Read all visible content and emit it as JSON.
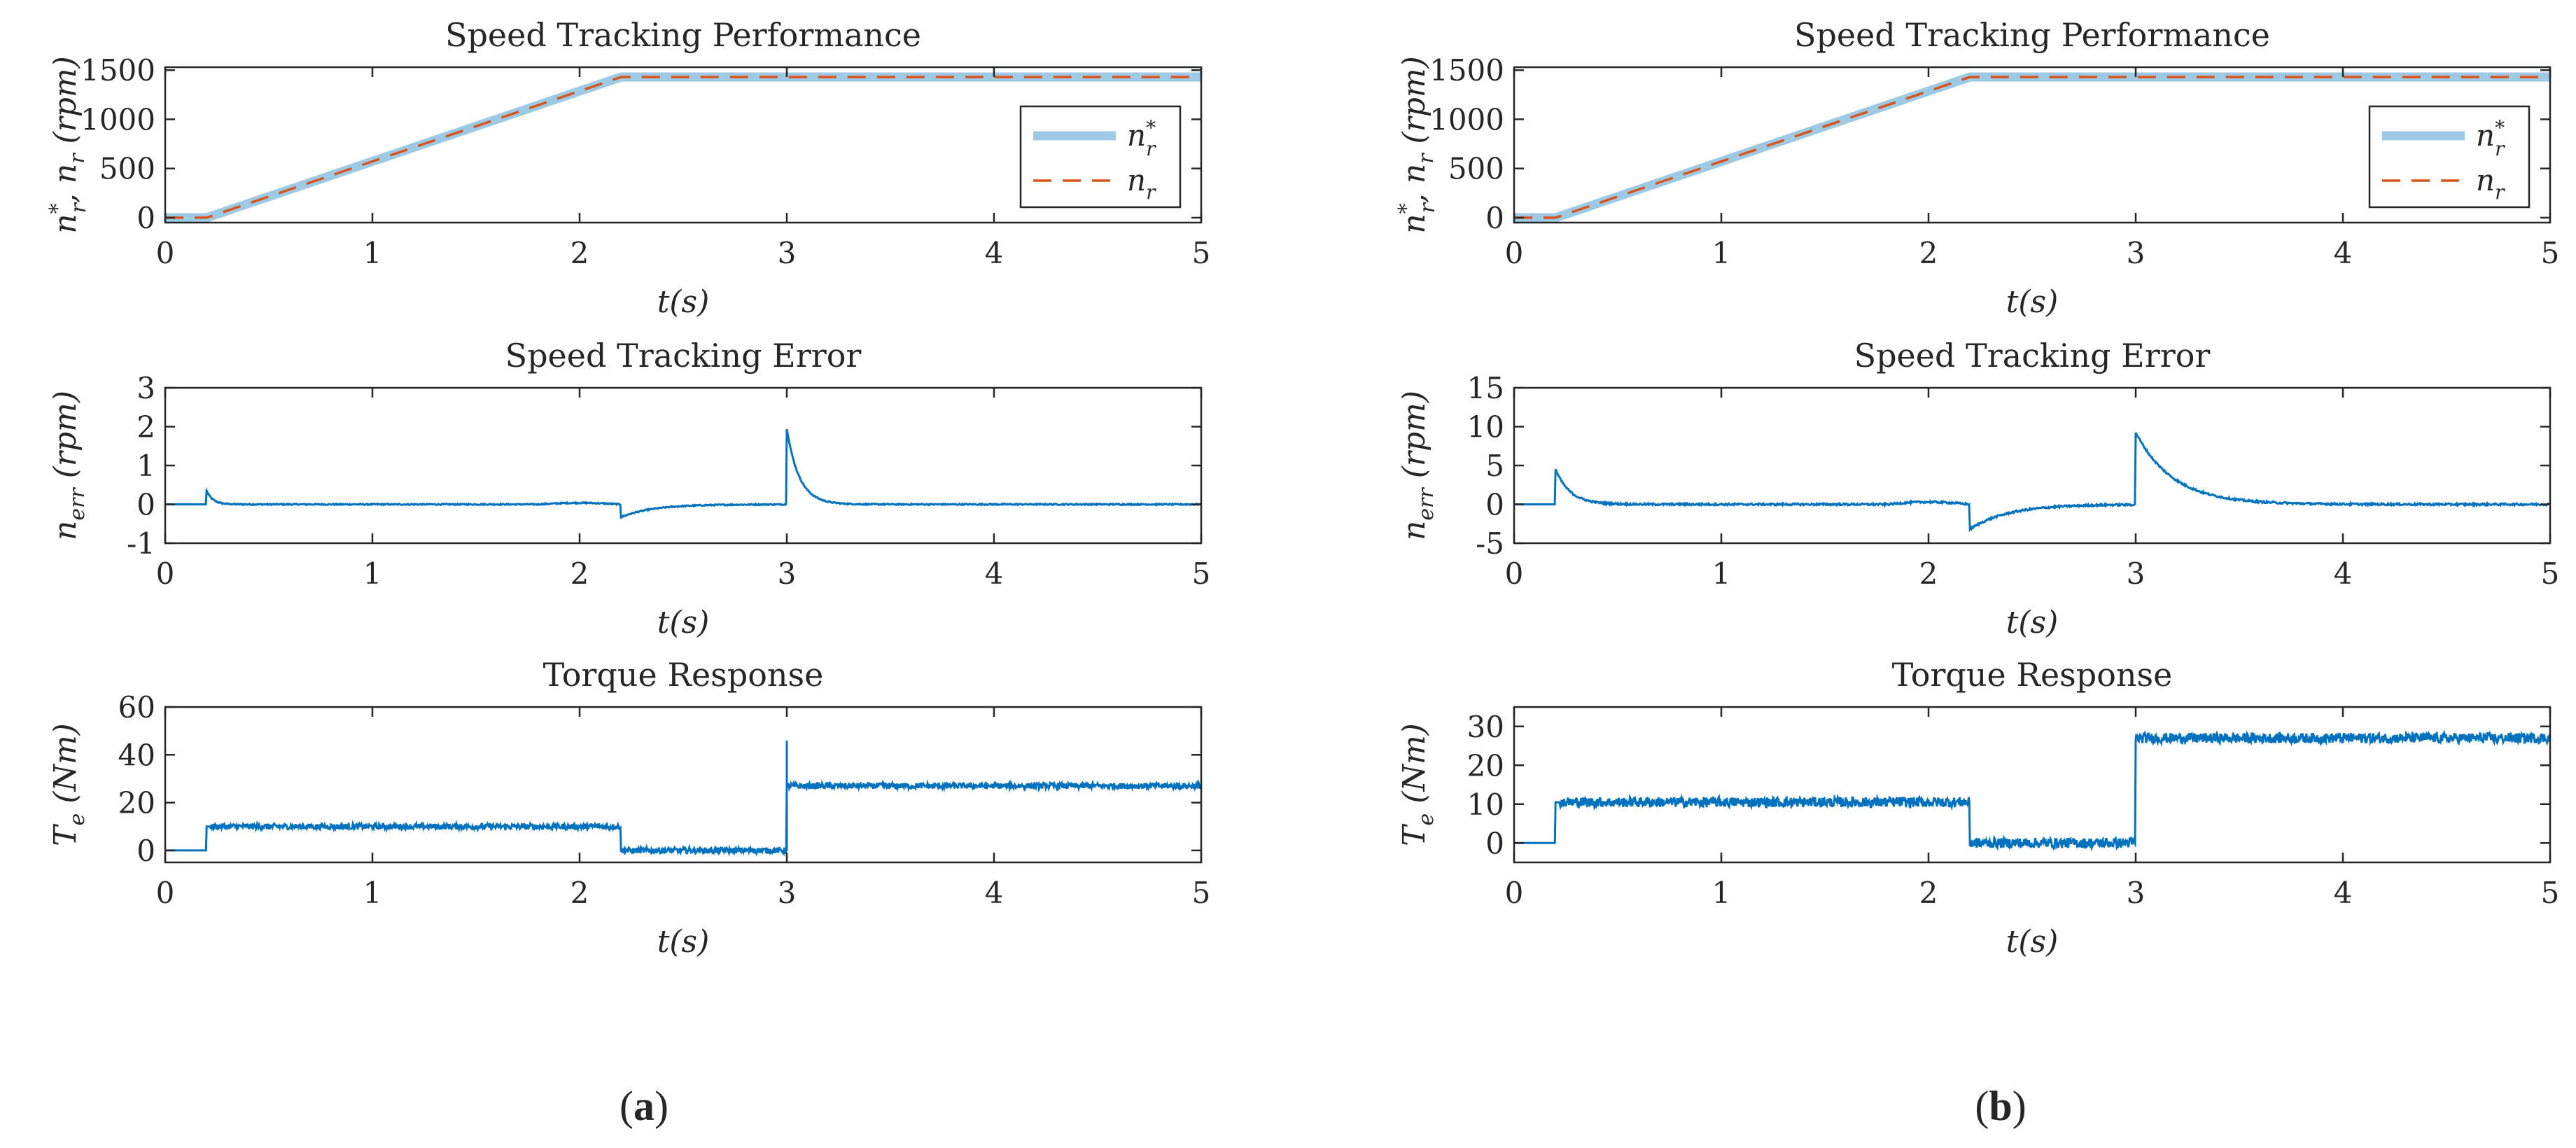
{
  "panels": [
    {
      "label": "(a)",
      "plots": [
        {
          "kind": "speed",
          "title": "Speed Tracking Performance",
          "ylabel": "n*_r, n_r (rpm)",
          "ylabel_parts": [
            "n",
            "*",
            "r",
            ", n",
            "r",
            " (rpm)"
          ],
          "xlabel": "t(s)",
          "xlim": [
            0,
            5
          ],
          "ylim": [
            -50,
            1530
          ],
          "xticks": [
            0,
            1,
            2,
            3,
            4,
            5
          ],
          "yticks": [
            0,
            500,
            1000,
            1500
          ],
          "ref_points": [
            [
              0,
              0
            ],
            [
              0.2,
              0
            ],
            [
              2.2,
              1430
            ],
            [
              5,
              1430
            ]
          ],
          "legend": [
            "n*_r",
            "n_r"
          ],
          "legend_parts": [
            [
              "n",
              "*",
              "r"
            ],
            [
              "n",
              "",
              "r"
            ]
          ]
        },
        {
          "kind": "error",
          "title": "Speed Tracking Error",
          "ylabel": "n_err (rpm)",
          "ylabel_parts": [
            "n",
            "err",
            " (rpm)"
          ],
          "xlabel": "t(s)",
          "xlim": [
            0,
            5
          ],
          "ylim": [
            -1,
            3
          ],
          "xticks": [
            0,
            1,
            2,
            3,
            4,
            5
          ],
          "yticks": [
            -1,
            0,
            1,
            2,
            3
          ],
          "events": [
            {
              "t": 0.2,
              "peak": 0.35,
              "tau": 0.03
            },
            {
              "t": 2.2,
              "peak": -0.33,
              "tau": 0.15
            },
            {
              "t": 3.0,
              "peak": 1.95,
              "tau": 0.06
            }
          ],
          "noise": 0.015
        },
        {
          "kind": "torque",
          "title": "Torque Response",
          "ylabel": "T_e (Nm)",
          "ylabel_parts": [
            "T",
            "e",
            " (Nm)"
          ],
          "xlabel": "t(s)",
          "xlim": [
            0,
            5
          ],
          "ylim": [
            -5,
            60
          ],
          "xticks": [
            0,
            1,
            2,
            3,
            4,
            5
          ],
          "yticks": [
            0,
            20,
            40,
            60
          ],
          "levels": [
            [
              0,
              0.2,
              0
            ],
            [
              0.2,
              2.2,
              10
            ],
            [
              2.2,
              3.0,
              0
            ],
            [
              3.0,
              5.0,
              27
            ]
          ],
          "spikes": [
            {
              "t": 3.0,
              "value": 46
            }
          ],
          "ripple": 1.2
        }
      ]
    },
    {
      "label": "(b)",
      "plots": [
        {
          "kind": "speed",
          "title": "Speed Tracking Performance",
          "ylabel": "n*_r, n_r (rpm)",
          "ylabel_parts": [
            "n",
            "*",
            "r",
            ", n",
            "r",
            " (rpm)"
          ],
          "xlabel": "t(s)",
          "xlim": [
            0,
            5
          ],
          "ylim": [
            -50,
            1530
          ],
          "xticks": [
            0,
            1,
            2,
            3,
            4,
            5
          ],
          "yticks": [
            0,
            500,
            1000,
            1500
          ],
          "ref_points": [
            [
              0,
              0
            ],
            [
              0.2,
              0
            ],
            [
              2.2,
              1430
            ],
            [
              5,
              1430
            ]
          ],
          "legend": [
            "n*_r",
            "n_r"
          ],
          "legend_parts": [
            [
              "n",
              "*",
              "r"
            ],
            [
              "n",
              "",
              "r"
            ]
          ]
        },
        {
          "kind": "error",
          "title": "Speed Tracking Error",
          "ylabel": "n_err (rpm)",
          "ylabel_parts": [
            "n",
            "err",
            " (rpm)"
          ],
          "xlabel": "t(s)",
          "xlim": [
            0,
            5
          ],
          "ylim": [
            -5,
            15
          ],
          "xticks": [
            0,
            1,
            2,
            3,
            4,
            5
          ],
          "yticks": [
            -5,
            0,
            5,
            10,
            15
          ],
          "events": [
            {
              "t": 0.2,
              "peak": 4.5,
              "tau": 0.07
            },
            {
              "t": 2.2,
              "peak": -3.2,
              "tau": 0.18
            },
            {
              "t": 3.0,
              "peak": 9.3,
              "tau": 0.18
            }
          ],
          "noise": 0.12
        },
        {
          "kind": "torque",
          "title": "Torque Response",
          "ylabel": "T_e (Nm)",
          "ylabel_parts": [
            "T",
            "e",
            " (Nm)"
          ],
          "xlabel": "t(s)",
          "xlim": [
            0,
            5
          ],
          "ylim": [
            -5,
            35
          ],
          "xticks": [
            0,
            1,
            2,
            3,
            4,
            5
          ],
          "yticks": [
            0,
            10,
            20,
            30
          ],
          "levels": [
            [
              0,
              0.2,
              0
            ],
            [
              0.2,
              2.2,
              10.5
            ],
            [
              2.2,
              3.0,
              0
            ],
            [
              3.0,
              5.0,
              27
            ]
          ],
          "spikes": [],
          "ripple": 1.3
        }
      ]
    }
  ],
  "chart_data": [
    {
      "type": "line",
      "title": "Speed Tracking Performance",
      "panel": "(a)",
      "xlabel": "t(s)",
      "ylabel": "n*_r, n_r (rpm)",
      "ylim": [
        -50,
        1530
      ],
      "series": [
        {
          "name": "n*_r",
          "x": [
            0,
            0.2,
            2.2,
            5
          ],
          "values": [
            0,
            0,
            1430,
            1430
          ]
        },
        {
          "name": "n_r",
          "x": [
            0,
            0.2,
            2.2,
            5
          ],
          "values": [
            0,
            0,
            1430,
            1430
          ]
        }
      ]
    },
    {
      "type": "line",
      "title": "Speed Tracking Error",
      "panel": "(a)",
      "xlabel": "t(s)",
      "ylabel": "n_err (rpm)",
      "ylim": [
        -1,
        3
      ],
      "series": [
        {
          "name": "n_err",
          "x": [
            0,
            0.2,
            2.2,
            3.0,
            5
          ],
          "values": [
            0,
            0.35,
            -0.33,
            1.95,
            0
          ]
        }
      ]
    },
    {
      "type": "line",
      "title": "Torque Response",
      "panel": "(a)",
      "xlabel": "t(s)",
      "ylabel": "T_e (Nm)",
      "ylim": [
        -5,
        60
      ],
      "series": [
        {
          "name": "T_e",
          "x": [
            0,
            0.2,
            2.2,
            3.0,
            5
          ],
          "values": [
            0,
            10,
            0,
            27,
            27
          ]
        }
      ]
    },
    {
      "type": "line",
      "title": "Speed Tracking Performance",
      "panel": "(b)",
      "xlabel": "t(s)",
      "ylabel": "n*_r, n_r (rpm)",
      "ylim": [
        -50,
        1530
      ],
      "series": [
        {
          "name": "n*_r",
          "x": [
            0,
            0.2,
            2.2,
            5
          ],
          "values": [
            0,
            0,
            1430,
            1430
          ]
        },
        {
          "name": "n_r",
          "x": [
            0,
            0.2,
            2.2,
            5
          ],
          "values": [
            0,
            0,
            1430,
            1430
          ]
        }
      ]
    },
    {
      "type": "line",
      "title": "Speed Tracking Error",
      "panel": "(b)",
      "xlabel": "t(s)",
      "ylabel": "n_err (rpm)",
      "ylim": [
        -5,
        15
      ],
      "series": [
        {
          "name": "n_err",
          "x": [
            0,
            0.2,
            2.2,
            3.0,
            5
          ],
          "values": [
            0,
            4.5,
            -3.2,
            9.3,
            0
          ]
        }
      ]
    },
    {
      "type": "line",
      "title": "Torque Response",
      "panel": "(b)",
      "xlabel": "t(s)",
      "ylabel": "T_e (Nm)",
      "ylim": [
        -5,
        35
      ],
      "series": [
        {
          "name": "T_e",
          "x": [
            0,
            0.2,
            2.2,
            3.0,
            5
          ],
          "values": [
            0,
            10.5,
            0,
            27,
            27
          ]
        }
      ]
    }
  ],
  "colors": {
    "reference": "#9ccae4",
    "actual": "#d9541a",
    "signal": "#0072bd",
    "axis": "#262626"
  }
}
